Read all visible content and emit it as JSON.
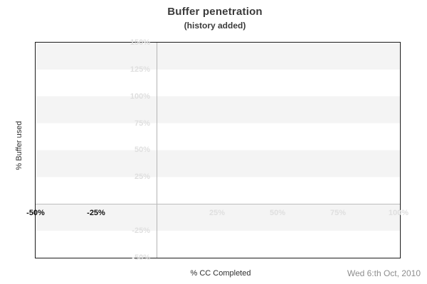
{
  "header": {
    "title": "Buffer penetration",
    "subtitle": "(history added)"
  },
  "footer": {
    "date_label": "Wed 6:th Oct, 2010"
  },
  "chart_data": {
    "type": "line",
    "title": "Buffer penetration",
    "subtitle": "(history added)",
    "xlabel": "% CC Completed",
    "ylabel": "% Buffer used",
    "xlim": [
      -50,
      100
    ],
    "ylim": [
      -50,
      150
    ],
    "series": [],
    "note": "plot grid is empty - no data series drawn",
    "grid": {
      "horizontal_bands_every_pct": 25,
      "band_color": "#f4f4f4",
      "zero_axis_lines": true,
      "legend": "none"
    },
    "y_ticks": [
      {
        "label": "150%",
        "value": 150,
        "muted": true
      },
      {
        "label": "125%",
        "value": 125,
        "muted": true
      },
      {
        "label": "100%",
        "value": 100,
        "muted": true
      },
      {
        "label": "75%",
        "value": 75,
        "muted": true
      },
      {
        "label": "50%",
        "value": 50,
        "muted": true
      },
      {
        "label": "25%",
        "value": 25,
        "muted": true
      },
      {
        "label": "-25%",
        "value": -25,
        "muted": true
      },
      {
        "label": "-50%",
        "value": -50,
        "muted": true
      }
    ],
    "x_ticks": [
      {
        "label": "-50%",
        "value": -50,
        "muted": false
      },
      {
        "label": "-25%",
        "value": -25,
        "muted": false
      },
      {
        "label": "25%",
        "value": 25,
        "muted": true
      },
      {
        "label": "50%",
        "value": 50,
        "muted": true
      },
      {
        "label": "75%",
        "value": 75,
        "muted": true
      },
      {
        "label": "100%",
        "value": 100,
        "muted": true
      }
    ],
    "colors": {
      "band": "#f4f4f4",
      "zero_axis_line": "#b4b4b4",
      "plot_border": "#1c1c1c",
      "muted_tick": "#dfdfdf",
      "emphasized_tick": "#111111",
      "title_text": "#3b3b3b",
      "axis_title_text": "#2e2e2e",
      "date_text": "#8e8e8e",
      "background": "#ffffff"
    }
  }
}
